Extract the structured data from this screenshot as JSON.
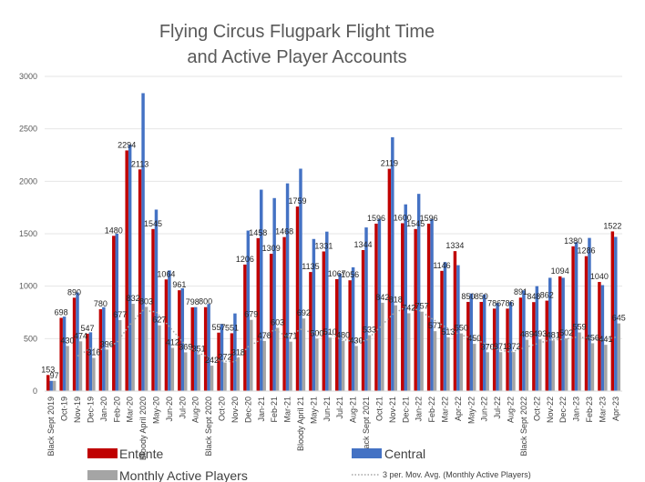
{
  "chart_data": {
    "type": "bar",
    "title_lines": [
      "Flying Circus Flugpark Flight Time",
      "and Active Player Accounts"
    ],
    "xlabel": "",
    "ylabel": "",
    "ylim": [
      0,
      3000
    ],
    "yticks": [
      "0",
      "500",
      "1000",
      "1500",
      "2000",
      "2500",
      "3000"
    ],
    "yticks_values": [
      0,
      500,
      1000,
      1500,
      2000,
      2500,
      3000
    ],
    "categories": [
      "Black Sept 2019",
      "Oct-19",
      "Nov-19",
      "Dec-19",
      "Jan-20",
      "Feb-20",
      "Mar-20",
      "Bloody April 2020",
      "May-20",
      "Jun-20",
      "Jul-20",
      "Aug-20",
      "Black Sept 2020",
      "Oct-20",
      "Nov-20",
      "Dec-20",
      "Jan-21",
      "Feb-21",
      "Mar-21",
      "Bloody April 21",
      "May-21",
      "Jun-21",
      "Jul-21",
      "Aug-21",
      "Black Sept 2021",
      "Oct-21",
      "Nov-21",
      "Dec-21",
      "Jan-22",
      "Feb-22",
      "Mar-22",
      "Apr-22",
      "May-22",
      "Jun-22",
      "Jul-22",
      "Aug-22",
      "Black Sept 2022",
      "Oct-22",
      "Nov-22",
      "Dec-22",
      "Jan-23",
      "Feb-23",
      "Mar-23",
      "Apr-23"
    ],
    "series": [
      {
        "name": "Entente",
        "color": "#c00000",
        "values": [
          153,
          698,
          890,
          547,
          780,
          1480,
          2294,
          2113,
          1545,
          1064,
          961,
          798,
          800,
          557,
          551,
          1206,
          1458,
          1309,
          1468,
          1759,
          1135,
          1331,
          1067,
          1056,
          1344,
          1596,
          2119,
          1600,
          1545,
          1596,
          1146,
          1334,
          850,
          850,
          786,
          786,
          891,
          848,
          862,
          1094,
          1380,
          1286,
          1040,
          1522
        ]
      },
      {
        "name": "Central",
        "color": "#4472c4",
        "values": [
          97,
          710,
          940,
          560,
          800,
          1500,
          2350,
          2840,
          1730,
          1150,
          980,
          800,
          830,
          640,
          740,
          1530,
          1920,
          1840,
          1980,
          2120,
          1450,
          1520,
          1120,
          1180,
          1560,
          1640,
          2420,
          1780,
          1880,
          1640,
          1230,
          1200,
          930,
          920,
          840,
          850,
          960,
          1000,
          1080,
          1080,
          1420,
          1460,
          1010,
          1470
        ]
      },
      {
        "name": "Monthly Active Players",
        "color": "#a5a5a5",
        "values": [
          97,
          430,
          474,
          316,
          396,
          677,
          832,
          803,
          627,
          412,
          369,
          351,
          242,
          272,
          318,
          679,
          478,
          603,
          471,
          692,
          500,
          510,
          480,
          430,
          533,
          842,
          818,
          742,
          757,
          571,
          513,
          550,
          450,
          370,
          371,
          372,
          489,
          493,
          481,
          502,
          559,
          456,
          441,
          645
        ]
      }
    ],
    "bar_value_labels": {
      "Entente": [
        "153",
        "698",
        "890",
        "547",
        "780",
        "1480",
        "2294",
        "2113",
        "1545",
        "1064",
        "961",
        "798",
        "800",
        "557",
        "551",
        "1206",
        "1458",
        "1309",
        "1468",
        "1759",
        "1135",
        "1331",
        "1067",
        "1056",
        "1344",
        "1596",
        "2119",
        "1600",
        "1545",
        "1596",
        "1146",
        "1334",
        "850",
        "850",
        "786",
        "786",
        "891",
        "848",
        "862",
        "1094",
        "1380",
        "1286",
        "1040",
        "1522"
      ],
      "Monthly Active Players": [
        "97",
        "430",
        "474",
        "316",
        "396",
        "677",
        "832",
        "803",
        "627",
        "412",
        "369",
        "351",
        "242",
        "272",
        "318",
        "679",
        "478",
        "603",
        "471",
        "692",
        "500",
        "510",
        "480",
        "430",
        "533",
        "842",
        "818",
        "742",
        "757",
        "571",
        "513",
        "550",
        "450",
        "370",
        "371",
        "372",
        "489",
        "493",
        "481",
        "502",
        "559",
        "456",
        "441",
        "645"
      ]
    },
    "trendline": {
      "name": "3 per. Mov. Avg. (Monthly Active Players)",
      "period": 3,
      "color": "#a5a5a5"
    },
    "legend": {
      "position": "bottom",
      "entries": [
        {
          "label": "Entente",
          "color": "#c00000"
        },
        {
          "label": "Central",
          "color": "#4472c4"
        },
        {
          "label": "Monthly Active Players",
          "color": "#a5a5a5"
        },
        {
          "label": "3 per. Mov. Avg. (Monthly Active Players)",
          "color": "#a5a5a5"
        }
      ]
    },
    "grid": true
  }
}
